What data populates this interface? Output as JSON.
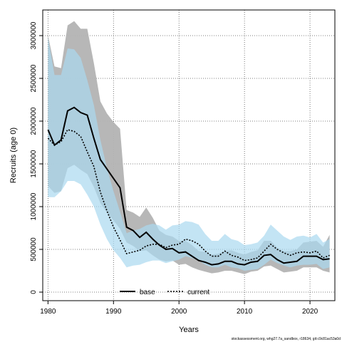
{
  "chart_data": {
    "type": "line",
    "xlabel": "Years",
    "ylabel": "Recruits (age 0)",
    "xlim": [
      1979.2,
      2023.8
    ],
    "ylim": [
      -100000,
      3300000
    ],
    "x_ticks": [
      1980,
      1990,
      2000,
      2010,
      2020
    ],
    "y_ticks": [
      0,
      500000,
      1000000,
      1500000,
      2000000,
      2500000,
      3000000
    ],
    "grid": true,
    "legend_placement": "bottom-center",
    "x": [
      1980,
      1981,
      1982,
      1983,
      1984,
      1985,
      1986,
      1987,
      1988,
      1989,
      1990,
      1991,
      1992,
      1993,
      1994,
      1995,
      1996,
      1997,
      1998,
      1999,
      2000,
      2001,
      2002,
      2003,
      2004,
      2005,
      2006,
      2007,
      2008,
      2009,
      2010,
      2011,
      2012,
      2013,
      2014,
      2015,
      2016,
      2017,
      2018,
      2019,
      2020,
      2021,
      2022,
      2023
    ],
    "series": [
      {
        "name": "base",
        "line_style": "solid",
        "line_color": "#000000",
        "band_color": "#b3b3b3",
        "values": [
          1900000,
          1720000,
          1780000,
          2120000,
          2160000,
          2100000,
          2070000,
          1800000,
          1550000,
          1440000,
          1330000,
          1220000,
          760000,
          720000,
          640000,
          700000,
          620000,
          550000,
          500000,
          510000,
          460000,
          470000,
          420000,
          370000,
          350000,
          320000,
          330000,
          360000,
          360000,
          330000,
          320000,
          350000,
          360000,
          430000,
          440000,
          380000,
          340000,
          350000,
          360000,
          420000,
          420000,
          420000,
          380000,
          390000
        ],
        "upper": [
          3000000,
          2640000,
          2620000,
          3120000,
          3170000,
          3080000,
          3080000,
          2680000,
          2230000,
          2090000,
          1990000,
          1910000,
          960000,
          930000,
          880000,
          990000,
          870000,
          720000,
          670000,
          650000,
          600000,
          600000,
          550000,
          480000,
          470000,
          440000,
          450000,
          480000,
          490000,
          460000,
          440000,
          470000,
          490000,
          600000,
          600000,
          520000,
          480000,
          480000,
          500000,
          580000,
          590000,
          600000,
          530000,
          670000
        ],
        "lower": [
          1240000,
          1160000,
          1180000,
          1450000,
          1490000,
          1430000,
          1380000,
          1230000,
          1040000,
          930000,
          840000,
          740000,
          580000,
          540000,
          480000,
          490000,
          430000,
          380000,
          360000,
          370000,
          320000,
          330000,
          290000,
          260000,
          240000,
          220000,
          230000,
          250000,
          250000,
          230000,
          210000,
          240000,
          250000,
          300000,
          310000,
          270000,
          230000,
          240000,
          250000,
          290000,
          290000,
          290000,
          250000,
          230000
        ]
      },
      {
        "name": "current",
        "line_style": "dotted",
        "line_color": "#000000",
        "band_color": "#a9d9f0",
        "values": [
          1800000,
          1720000,
          1760000,
          1900000,
          1880000,
          1820000,
          1640000,
          1470000,
          1170000,
          950000,
          760000,
          610000,
          450000,
          470000,
          490000,
          540000,
          560000,
          560000,
          520000,
          550000,
          560000,
          620000,
          600000,
          560000,
          480000,
          420000,
          420000,
          480000,
          430000,
          410000,
          370000,
          380000,
          400000,
          480000,
          560000,
          500000,
          460000,
          430000,
          460000,
          470000,
          460000,
          480000,
          400000,
          430000
        ],
        "upper": [
          2980000,
          2540000,
          2540000,
          2850000,
          2840000,
          2740000,
          2480000,
          2190000,
          1780000,
          1450000,
          1180000,
          940000,
          690000,
          720000,
          740000,
          780000,
          800000,
          780000,
          730000,
          780000,
          790000,
          830000,
          820000,
          790000,
          680000,
          600000,
          600000,
          680000,
          620000,
          600000,
          550000,
          560000,
          580000,
          660000,
          790000,
          720000,
          650000,
          610000,
          650000,
          660000,
          640000,
          680000,
          580000,
          620000
        ],
        "lower": [
          1110000,
          1110000,
          1180000,
          1300000,
          1300000,
          1260000,
          1140000,
          1000000,
          790000,
          620000,
          490000,
          400000,
          290000,
          310000,
          320000,
          350000,
          370000,
          370000,
          340000,
          360000,
          380000,
          420000,
          400000,
          370000,
          320000,
          290000,
          290000,
          320000,
          290000,
          280000,
          250000,
          260000,
          270000,
          320000,
          380000,
          340000,
          310000,
          290000,
          310000,
          320000,
          320000,
          330000,
          270000,
          290000
        ]
      }
    ],
    "footnote": "stockassessment.org, whg27.7a_sandbox, r18634, git:c9c81ac53a0d"
  }
}
